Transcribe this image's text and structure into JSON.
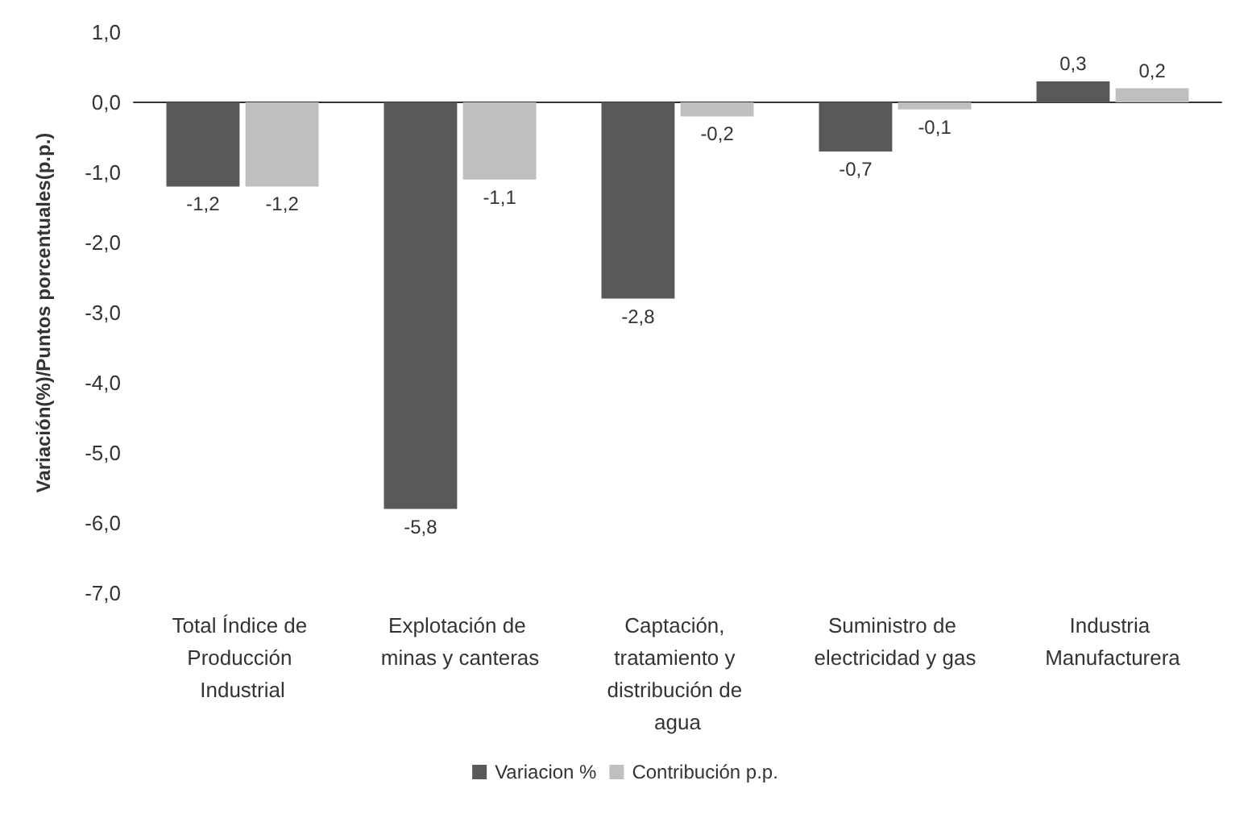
{
  "chart_data": {
    "type": "bar",
    "ylabel": "Variación(%)/Puntos porcentuales(p.p.)",
    "categories": [
      "Total Índice de Producción Industrial",
      "Explotación de minas y canteras",
      "Captación, tratamiento y distribución de agua",
      "Suministro de electricidad y gas",
      "Industria Manufacturera"
    ],
    "series": [
      {
        "name": "Variacion %",
        "color": "#595959",
        "values": [
          -1.2,
          -5.8,
          -2.8,
          -0.7,
          0.3
        ],
        "value_labels": [
          "-1,2",
          "-5,8",
          "-2,8",
          "-0,7",
          "0,3"
        ]
      },
      {
        "name": "Contribución p.p.",
        "color": "#bfbfbf",
        "values": [
          -1.2,
          -1.1,
          -0.2,
          -0.1,
          0.2
        ],
        "value_labels": [
          "-1,2",
          "-1,1",
          "-0,2",
          "-0,1",
          "0,2"
        ]
      }
    ],
    "ylim": [
      -7,
      1
    ],
    "yticks": [
      {
        "value": 1,
        "label": "1,0"
      },
      {
        "value": 0,
        "label": "0,0"
      },
      {
        "value": -1,
        "label": "-1,0"
      },
      {
        "value": -2,
        "label": "-2,0"
      },
      {
        "value": -3,
        "label": "-3,0"
      },
      {
        "value": -4,
        "label": "-4,0"
      },
      {
        "value": -5,
        "label": "-5,0"
      },
      {
        "value": -6,
        "label": "-6,0"
      },
      {
        "value": -7,
        "label": "-7,0"
      }
    ],
    "legend": "bottom"
  }
}
